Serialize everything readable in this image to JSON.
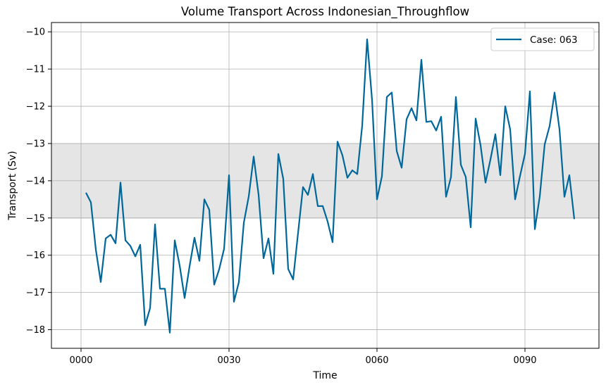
{
  "chart_data": {
    "type": "line",
    "title": "Volume Transport Across Indonesian_Throughflow",
    "xlabel": "Time",
    "ylabel": "Transport (Sv)",
    "xlim": [
      -6,
      105
    ],
    "ylim": [
      -18.5,
      -9.75
    ],
    "x_ticks": [
      0,
      30,
      60,
      90
    ],
    "x_tick_labels": [
      "0000",
      "0030",
      "0060",
      "0090"
    ],
    "y_ticks": [
      -18,
      -17,
      -16,
      -15,
      -14,
      -13,
      -12,
      -11,
      -10
    ],
    "y_tick_labels": [
      "−18",
      "−17",
      "−16",
      "−15",
      "−14",
      "−13",
      "−12",
      "−11",
      "−10"
    ],
    "grid": true,
    "legend_position": "top-right",
    "shaded_band": {
      "y_min": -15,
      "y_max": -13,
      "color": "#e5e5e5"
    },
    "series": [
      {
        "name": "Case: 063",
        "color": "#00679a",
        "x": [
          1,
          2,
          3,
          4,
          5,
          6,
          7,
          8,
          9,
          10,
          11,
          12,
          13,
          14,
          15,
          16,
          17,
          18,
          19,
          20,
          21,
          22,
          23,
          24,
          25,
          26,
          27,
          28,
          29,
          30,
          31,
          32,
          33,
          34,
          35,
          36,
          37,
          38,
          39,
          40,
          41,
          42,
          43,
          44,
          45,
          46,
          47,
          48,
          49,
          50,
          51,
          52,
          53,
          54,
          55,
          56,
          57,
          58,
          59,
          60,
          61,
          62,
          63,
          64,
          65,
          66,
          67,
          68,
          69,
          70,
          71,
          72,
          73,
          74,
          75,
          76,
          77,
          78,
          79,
          80,
          81,
          82,
          83,
          84,
          85,
          86,
          87,
          88,
          89,
          90,
          91,
          92,
          93,
          94,
          95,
          96,
          97,
          98,
          99,
          100
        ],
        "y": [
          -14.32,
          -14.58,
          -15.85,
          -16.72,
          -15.55,
          -15.45,
          -15.68,
          -14.05,
          -15.6,
          -15.75,
          -16.03,
          -15.72,
          -17.88,
          -17.42,
          -15.17,
          -16.9,
          -16.9,
          -18.08,
          -15.6,
          -16.28,
          -17.15,
          -16.3,
          -15.53,
          -16.15,
          -14.5,
          -14.78,
          -16.79,
          -16.38,
          -15.83,
          -13.85,
          -17.25,
          -16.72,
          -15.13,
          -14.42,
          -13.35,
          -14.38,
          -16.08,
          -15.55,
          -16.5,
          -13.28,
          -13.95,
          -16.37,
          -16.65,
          -15.4,
          -14.17,
          -14.38,
          -13.82,
          -14.68,
          -14.68,
          -15.1,
          -15.65,
          -12.95,
          -13.32,
          -13.92,
          -13.72,
          -13.82,
          -12.52,
          -10.2,
          -11.83,
          -14.5,
          -13.88,
          -11.75,
          -11.63,
          -13.2,
          -13.65,
          -12.35,
          -12.05,
          -12.38,
          -10.75,
          -12.42,
          -12.4,
          -12.65,
          -12.28,
          -14.43,
          -13.9,
          -11.75,
          -13.57,
          -13.9,
          -15.25,
          -12.33,
          -13.05,
          -14.05,
          -13.43,
          -12.75,
          -13.85,
          -12.0,
          -12.62,
          -14.5,
          -13.87,
          -13.28,
          -11.6,
          -15.3,
          -14.42,
          -13.02,
          -12.53,
          -11.63,
          -12.62,
          -14.43,
          -13.85,
          -15.03
        ]
      }
    ]
  }
}
